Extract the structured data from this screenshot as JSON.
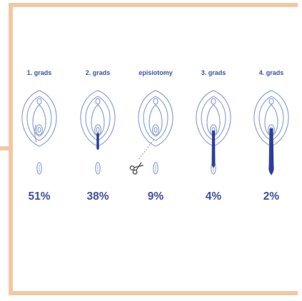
{
  "colors": {
    "frame": "#f0c9a3",
    "outline": "#8fa2d4",
    "accent": "#2c3f9a",
    "text": "#3e4fa3"
  },
  "illustrations": [
    {
      "label": "1. grads",
      "percent": "51%",
      "tear": "none",
      "scissors": false
    },
    {
      "label": "2. grads",
      "percent": "38%",
      "tear": "short",
      "scissors": false
    },
    {
      "label": "episiotomy",
      "percent": "9%",
      "tear": "cut",
      "scissors": true,
      "scissors_icon": "scissors-icon"
    },
    {
      "label": "3. grads",
      "percent": "4%",
      "tear": "medium",
      "scissors": false
    },
    {
      "label": "4. grads",
      "percent": "2%",
      "tear": "long",
      "scissors": false
    }
  ]
}
